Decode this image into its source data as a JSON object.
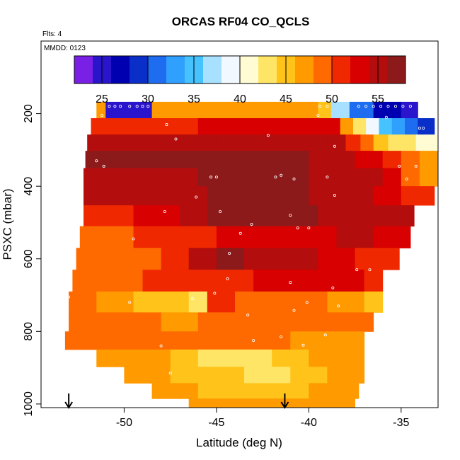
{
  "chart_data": {
    "type": "heatmap",
    "title": "ORCAS RF04 CO_QCLS",
    "flights_label": "Flts: 4",
    "date_label": "MMDD: 0123",
    "xlabel": "Latitude (deg N)",
    "ylabel": "PSXC (mbar)",
    "xlim": [
      -54.5,
      -33.0
    ],
    "ylim": [
      1010,
      0
    ],
    "x_ticks": [
      -50,
      -45,
      -40,
      -35
    ],
    "y_ticks": [
      200,
      400,
      600,
      800,
      1000
    ],
    "colorbar": {
      "min": 22,
      "max": 58,
      "ticks": [
        25,
        30,
        35,
        40,
        45,
        50,
        55
      ],
      "colors": [
        "#7a1fe6",
        "#2a14cc",
        "#0000b0",
        "#0a2ec8",
        "#1e6cf0",
        "#30a0ff",
        "#46c2ff",
        "#a8e0ff",
        "#f2f8ff",
        "#fffbd2",
        "#ffe566",
        "#ffc31a",
        "#ff9a00",
        "#ff6a00",
        "#f02800",
        "#d80000",
        "#b40d0d",
        "#8c1a1a"
      ]
    },
    "arrows_x": [
      -53.0,
      -41.3
    ],
    "rows": [
      {
        "p": 190,
        "xmin": -51.5,
        "xmax": -34.1,
        "lat": [
          -51.5,
          -51.0,
          -49.5,
          -48.5,
          -44.0,
          -39.5,
          -38.8,
          -37.8,
          -36.5,
          -35.0,
          -34.1
        ],
        "val": [
          46,
          24,
          24,
          47,
          47,
          44,
          36,
          30,
          26,
          25
        ]
      },
      {
        "p": 235,
        "xmin": -51.8,
        "xmax": -33.2,
        "lat": [
          -51.8,
          -46.0,
          -39.0,
          -38.3,
          -37.6,
          -36.9,
          -36.2,
          -35.5,
          -34.8,
          -34.1,
          -33.2
        ],
        "val": [
          50,
          52,
          53,
          47,
          42,
          38,
          35,
          33,
          31,
          29
        ]
      },
      {
        "p": 280,
        "xmin": -52.0,
        "xmax": -33.0,
        "lat": [
          -52.0,
          -45.0,
          -39.0,
          -38.0,
          -37.2,
          -36.5,
          -35.7,
          -35.0,
          -34.2,
          -33.0
        ],
        "val": [
          54,
          55,
          54,
          51,
          48,
          45,
          43,
          42,
          41
        ]
      },
      {
        "p": 325,
        "xmin": -52.1,
        "xmax": -33.0,
        "lat": [
          -52.1,
          -46.0,
          -40.0,
          -37.5,
          -36.0,
          -35.0,
          -34.0,
          -33.0
        ],
        "val": [
          56,
          56,
          55,
          53,
          51,
          49,
          47
        ]
      },
      {
        "p": 375,
        "xmin": -52.2,
        "xmax": -33.0,
        "lat": [
          -52.2,
          -46.0,
          -40.0,
          -37.5,
          -36.0,
          -35.0,
          -34.0,
          -33.0
        ],
        "val": [
          55,
          56,
          55,
          54,
          52,
          49,
          46
        ]
      },
      {
        "p": 425,
        "xmin": -52.2,
        "xmax": -33.2,
        "lat": [
          -52.2,
          -45.5,
          -40.0,
          -36.5,
          -35.0,
          -33.2
        ],
        "val": [
          54,
          56,
          55,
          53,
          51
        ]
      },
      {
        "p": 480,
        "xmin": -52.2,
        "xmax": -34.3,
        "lat": [
          -52.2,
          -49.5,
          -47.0,
          -45.5,
          -43.0,
          -41.5,
          -39.5,
          -37.5,
          -34.3
        ],
        "val": [
          51,
          53,
          55,
          57,
          56,
          57,
          55,
          54
        ]
      },
      {
        "p": 540,
        "xmin": -52.4,
        "xmax": -34.5,
        "lat": [
          -52.4,
          -49.5,
          -47.5,
          -45.0,
          -43.0,
          -41.0,
          -38.5,
          -36.5,
          -34.5
        ],
        "val": [
          49,
          50,
          51,
          52,
          53,
          52,
          54,
          52
        ]
      },
      {
        "p": 600,
        "xmin": -52.6,
        "xmax": -35.1,
        "lat": [
          -52.6,
          -48.0,
          -46.5,
          -45.0,
          -43.5,
          -42.0,
          -39.5,
          -37.5,
          -35.1
        ],
        "val": [
          49,
          51,
          54,
          56,
          55,
          54,
          53,
          51
        ]
      },
      {
        "p": 660,
        "xmin": -52.8,
        "xmax": -36.0,
        "lat": [
          -52.8,
          -49.0,
          -46.0,
          -43.0,
          -39.0,
          -37.0,
          -36.0
        ],
        "val": [
          49,
          50,
          51,
          53,
          52,
          50
        ]
      },
      {
        "p": 720,
        "xmin": -53.0,
        "xmax": -36.0,
        "lat": [
          -53.0,
          -51.5,
          -49.5,
          -48.0,
          -46.5,
          -45.5,
          -44.0,
          -42.0,
          -39.0,
          -37.0,
          -36.0
        ],
        "val": [
          49,
          47,
          45,
          44,
          43,
          50,
          49,
          48,
          46,
          45
        ]
      },
      {
        "p": 775,
        "xmin": -53.0,
        "xmax": -36.5,
        "lat": [
          -53.0,
          -50.0,
          -48.0,
          -46.0,
          -43.0,
          -40.0,
          -38.0,
          -36.5
        ],
        "val": [
          49,
          48,
          47,
          48,
          49,
          49,
          48
        ]
      },
      {
        "p": 825,
        "xmin": -53.2,
        "xmax": -37.0,
        "lat": [
          -53.2,
          -50.0,
          -47.0,
          -44.0,
          -41.0,
          -39.0,
          -37.0
        ],
        "val": [
          49,
          49,
          48,
          48,
          47,
          47
        ]
      },
      {
        "p": 875,
        "xmin": -51.5,
        "xmax": -37.0,
        "lat": [
          -51.5,
          -49.0,
          -47.5,
          -46.0,
          -44.0,
          -42.0,
          -40.0,
          -38.0,
          -37.0
        ],
        "val": [
          47,
          46,
          44,
          42,
          43,
          45,
          46,
          47
        ]
      },
      {
        "p": 920,
        "xmin": -50.0,
        "xmax": -37.0,
        "lat": [
          -50.0,
          -47.5,
          -45.5,
          -43.5,
          -41.0,
          -39.0,
          -37.0
        ],
        "val": [
          46,
          45,
          44,
          43,
          44,
          46
        ]
      },
      {
        "p": 965,
        "xmin": -48.5,
        "xmax": -37.3,
        "lat": [
          -48.5,
          -46.0,
          -44.0,
          -42.0,
          -40.0,
          -37.3
        ],
        "val": [
          46,
          45,
          45,
          45,
          46
        ]
      },
      {
        "p": 1005,
        "xmin": -46.5,
        "xmax": -37.5,
        "lat": [
          -46.5,
          -44.0,
          -42.0,
          -40.0,
          -37.5
        ],
        "val": [
          46,
          46,
          46,
          46
        ]
      }
    ],
    "markers": [
      [
        -50.8,
        180
      ],
      [
        -50.5,
        180
      ],
      [
        -50.2,
        180
      ],
      [
        -49.7,
        180
      ],
      [
        -49.3,
        180
      ],
      [
        -49.0,
        180
      ],
      [
        -48.7,
        180
      ],
      [
        -39.4,
        180
      ],
      [
        -39.0,
        180
      ],
      [
        -37.3,
        180
      ],
      [
        -36.9,
        180
      ],
      [
        -36.5,
        180
      ],
      [
        -36.1,
        180
      ],
      [
        -35.7,
        180
      ],
      [
        -35.3,
        180
      ],
      [
        -34.9,
        180
      ],
      [
        -34.5,
        180
      ],
      [
        -51.2,
        205
      ],
      [
        -39.5,
        205
      ],
      [
        -35.8,
        210
      ],
      [
        -34.0,
        240
      ],
      [
        -47.7,
        230
      ],
      [
        -42.2,
        260
      ],
      [
        -33.8,
        240
      ],
      [
        -47.2,
        270
      ],
      [
        -38.6,
        290
      ],
      [
        -51.5,
        330
      ],
      [
        -51.1,
        345
      ],
      [
        -34.2,
        345
      ],
      [
        -35.1,
        345
      ],
      [
        -34.7,
        380
      ],
      [
        -45.3,
        375
      ],
      [
        -45.0,
        375
      ],
      [
        -41.8,
        375
      ],
      [
        -41.5,
        370
      ],
      [
        -39.0,
        375
      ],
      [
        -46.1,
        430
      ],
      [
        -38.6,
        425
      ],
      [
        -40.8,
        380
      ],
      [
        -43.7,
        530
      ],
      [
        -44.8,
        470
      ],
      [
        -47.8,
        470
      ],
      [
        -43.1,
        505
      ],
      [
        -41.0,
        480
      ],
      [
        -40.6,
        515
      ],
      [
        -40.0,
        515
      ],
      [
        -44.3,
        585
      ],
      [
        -49.5,
        545
      ],
      [
        -37.4,
        630
      ],
      [
        -36.7,
        630
      ],
      [
        -41.0,
        665
      ],
      [
        -38.7,
        680
      ],
      [
        -38.4,
        730
      ],
      [
        -45.1,
        695
      ],
      [
        -44.4,
        655
      ],
      [
        -40.8,
        742
      ],
      [
        -53.0,
        705
      ],
      [
        -43.3,
        755
      ],
      [
        -49.7,
        720
      ],
      [
        -46.3,
        710
      ],
      [
        -36.0,
        800
      ],
      [
        -40.1,
        720
      ],
      [
        -53.2,
        785
      ],
      [
        -36.1,
        822
      ],
      [
        -43.0,
        825
      ],
      [
        -40.3,
        838
      ],
      [
        -41.5,
        815
      ],
      [
        -48.0,
        840
      ],
      [
        -39.1,
        810
      ],
      [
        -36.6,
        945
      ],
      [
        -47.5,
        915
      ],
      [
        -37.2,
        967
      ],
      [
        -36.8,
        1000
      ]
    ]
  }
}
